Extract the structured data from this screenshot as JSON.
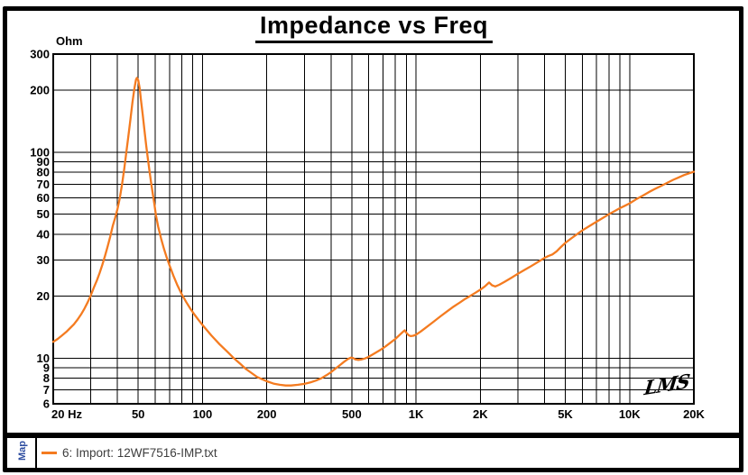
{
  "window": {
    "title": "Impedance vs Freq",
    "unit_label": "Ohm",
    "signature": "LMS"
  },
  "sidebar": {
    "map_label": "Map"
  },
  "legend": {
    "entry": "6: Import: 12WF7516-IMP.txt",
    "swatch_color": "#F47B20"
  },
  "chart_data": {
    "type": "line",
    "title": "Impedance vs Freq",
    "xlabel": "",
    "ylabel": "Ohm",
    "x_scale": "log",
    "y_scale": "log",
    "xlim": [
      20,
      20000
    ],
    "ylim": [
      6,
      300
    ],
    "grid": true,
    "legend_position": "bottom-left",
    "x_ticks": [
      {
        "f": 20,
        "label": "20 Hz"
      },
      {
        "f": 50,
        "label": "50"
      },
      {
        "f": 100,
        "label": "100"
      },
      {
        "f": 200,
        "label": "200"
      },
      {
        "f": 500,
        "label": "500"
      },
      {
        "f": 1000,
        "label": "1K"
      },
      {
        "f": 2000,
        "label": "2K"
      },
      {
        "f": 5000,
        "label": "5K"
      },
      {
        "f": 10000,
        "label": "10K"
      },
      {
        "f": 20000,
        "label": "20K"
      }
    ],
    "y_ticks": [
      {
        "v": 300,
        "label": "300"
      },
      {
        "v": 200,
        "label": "200"
      },
      {
        "v": 100,
        "label": "100"
      },
      {
        "v": 90,
        "label": "90"
      },
      {
        "v": 80,
        "label": "80"
      },
      {
        "v": 70,
        "label": "70"
      },
      {
        "v": 60,
        "label": "60"
      },
      {
        "v": 50,
        "label": "50"
      },
      {
        "v": 40,
        "label": "40"
      },
      {
        "v": 30,
        "label": "30"
      },
      {
        "v": 20,
        "label": "20"
      },
      {
        "v": 10,
        "label": "10"
      },
      {
        "v": 9,
        "label": "9"
      },
      {
        "v": 8,
        "label": "8"
      },
      {
        "v": 7,
        "label": "7"
      },
      {
        "v": 6,
        "label": "6"
      }
    ],
    "x_grid": [
      30,
      40,
      50,
      60,
      70,
      80,
      90,
      100,
      200,
      300,
      400,
      500,
      600,
      700,
      800,
      900,
      1000,
      2000,
      3000,
      4000,
      5000,
      6000,
      7000,
      8000,
      9000,
      10000
    ],
    "y_grid": [
      7,
      8,
      9,
      10,
      20,
      30,
      40,
      50,
      60,
      70,
      80,
      90,
      100,
      200
    ],
    "series": [
      {
        "name": "6: Import: 12WF7516-IMP.txt",
        "color": "#F47B20",
        "points": [
          [
            20,
            12.0
          ],
          [
            21,
            12.4
          ],
          [
            22,
            12.9
          ],
          [
            23,
            13.4
          ],
          [
            24,
            14.0
          ],
          [
            25,
            14.6
          ],
          [
            26,
            15.4
          ],
          [
            27,
            16.3
          ],
          [
            28,
            17.4
          ],
          [
            29,
            18.7
          ],
          [
            30,
            20.2
          ],
          [
            31,
            22.0
          ],
          [
            32,
            23.8
          ],
          [
            33,
            26.0
          ],
          [
            34,
            28.5
          ],
          [
            35,
            31.5
          ],
          [
            36,
            35.0
          ],
          [
            37,
            39.0
          ],
          [
            38,
            44.0
          ],
          [
            39,
            48.0
          ],
          [
            40,
            53.0
          ],
          [
            41,
            60.0
          ],
          [
            42,
            70.0
          ],
          [
            43,
            83.0
          ],
          [
            44,
            100.0
          ],
          [
            45,
            120.0
          ],
          [
            46,
            145.0
          ],
          [
            47,
            175.0
          ],
          [
            48,
            205.0
          ],
          [
            48.8,
            225.0
          ],
          [
            49.3,
            230.0
          ],
          [
            50,
            224.0
          ],
          [
            50.8,
            205.0
          ],
          [
            51.5,
            180.0
          ],
          [
            52.5,
            152.0
          ],
          [
            53.5,
            128.0
          ],
          [
            54.5,
            108.0
          ],
          [
            55.5,
            93.0
          ],
          [
            56.5,
            81.0
          ],
          [
            57.5,
            71.0
          ],
          [
            58.5,
            63.0
          ],
          [
            59.5,
            56.0
          ],
          [
            60.5,
            49.5
          ],
          [
            62,
            43.5
          ],
          [
            64,
            38.0
          ],
          [
            66,
            34.0
          ],
          [
            68,
            30.8
          ],
          [
            70,
            28.3
          ],
          [
            73,
            25.2
          ],
          [
            76,
            22.8
          ],
          [
            80,
            20.4
          ],
          [
            84,
            18.7
          ],
          [
            88,
            17.3
          ],
          [
            92,
            16.2
          ],
          [
            96,
            15.3
          ],
          [
            100,
            14.5
          ],
          [
            110,
            12.9
          ],
          [
            120,
            11.7
          ],
          [
            130,
            10.8
          ],
          [
            140,
            10.0
          ],
          [
            150,
            9.4
          ],
          [
            160,
            8.85
          ],
          [
            170,
            8.45
          ],
          [
            180,
            8.1
          ],
          [
            190,
            7.9
          ],
          [
            200,
            7.72
          ],
          [
            215,
            7.52
          ],
          [
            230,
            7.42
          ],
          [
            245,
            7.36
          ],
          [
            260,
            7.36
          ],
          [
            280,
            7.42
          ],
          [
            300,
            7.5
          ],
          [
            320,
            7.62
          ],
          [
            340,
            7.78
          ],
          [
            360,
            7.98
          ],
          [
            380,
            8.25
          ],
          [
            400,
            8.55
          ],
          [
            420,
            8.9
          ],
          [
            440,
            9.25
          ],
          [
            460,
            9.6
          ],
          [
            480,
            9.9
          ],
          [
            495,
            10.05
          ],
          [
            508,
            10.0
          ],
          [
            520,
            9.85
          ],
          [
            535,
            9.8
          ],
          [
            555,
            9.85
          ],
          [
            575,
            9.95
          ],
          [
            600,
            10.15
          ],
          [
            640,
            10.55
          ],
          [
            680,
            10.95
          ],
          [
            720,
            11.4
          ],
          [
            760,
            11.9
          ],
          [
            800,
            12.4
          ],
          [
            840,
            13.0
          ],
          [
            870,
            13.45
          ],
          [
            885,
            13.65
          ],
          [
            900,
            13.3
          ],
          [
            925,
            12.9
          ],
          [
            945,
            12.8
          ],
          [
            970,
            12.85
          ],
          [
            1000,
            13.0
          ],
          [
            1050,
            13.45
          ],
          [
            1100,
            13.95
          ],
          [
            1200,
            14.95
          ],
          [
            1300,
            15.95
          ],
          [
            1400,
            16.9
          ],
          [
            1500,
            17.8
          ],
          [
            1600,
            18.6
          ],
          [
            1700,
            19.4
          ],
          [
            1800,
            20.1
          ],
          [
            1900,
            20.8
          ],
          [
            2000,
            21.5
          ],
          [
            2100,
            22.3
          ],
          [
            2200,
            23.3
          ],
          [
            2270,
            22.6
          ],
          [
            2350,
            22.3
          ],
          [
            2450,
            22.7
          ],
          [
            2600,
            23.5
          ],
          [
            2800,
            24.6
          ],
          [
            3000,
            25.7
          ],
          [
            3200,
            26.7
          ],
          [
            3400,
            27.7
          ],
          [
            3600,
            28.7
          ],
          [
            3800,
            29.7
          ],
          [
            4000,
            30.7
          ],
          [
            4150,
            31.3
          ],
          [
            4350,
            31.9
          ],
          [
            4550,
            33.0
          ],
          [
            4750,
            34.5
          ],
          [
            5000,
            36.3
          ],
          [
            5300,
            38.0
          ],
          [
            5600,
            39.6
          ],
          [
            6000,
            41.7
          ],
          [
            6500,
            43.9
          ],
          [
            7000,
            46.0
          ],
          [
            7500,
            48.0
          ],
          [
            8000,
            50.0
          ],
          [
            8500,
            51.8
          ],
          [
            9000,
            53.5
          ],
          [
            9500,
            55.0
          ],
          [
            10000,
            56.5
          ],
          [
            10700,
            59.0
          ],
          [
            11500,
            61.5
          ],
          [
            12300,
            64.0
          ],
          [
            13200,
            66.5
          ],
          [
            14000,
            68.5
          ],
          [
            15000,
            71.0
          ],
          [
            16000,
            73.5
          ],
          [
            17000,
            75.5
          ],
          [
            18000,
            77.5
          ],
          [
            19000,
            79.0
          ],
          [
            20000,
            80.5
          ]
        ]
      }
    ]
  }
}
